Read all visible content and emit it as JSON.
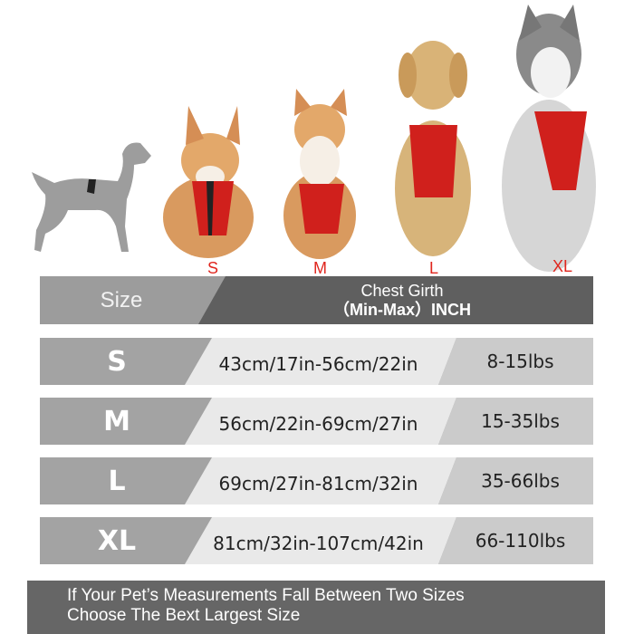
{
  "dog_size_labels": [
    "S",
    "M",
    "L",
    "XL"
  ],
  "header": {
    "size_label": "Size",
    "girth_line1": "Chest Girth",
    "girth_line2": "（Min-Max）INCH"
  },
  "rows": [
    {
      "size": "S",
      "girth": "43cm/17in-56cm/22in",
      "weight": "8-15lbs"
    },
    {
      "size": "M",
      "girth": "56cm/22in-69cm/27in",
      "weight": "15-35lbs"
    },
    {
      "size": "L",
      "girth": "69cm/27in-81cm/32in",
      "weight": "35-66lbs"
    },
    {
      "size": "XL",
      "girth": "81cm/32in-107cm/42in",
      "weight": "66-110lbs"
    }
  ],
  "footer": {
    "line1": "If Your Pet’s Measurements Fall Between Two Sizes",
    "line2": "Choose The Bext Largest Size"
  },
  "colors": {
    "size_label": "#e0261e",
    "harness": "#d0201c"
  }
}
